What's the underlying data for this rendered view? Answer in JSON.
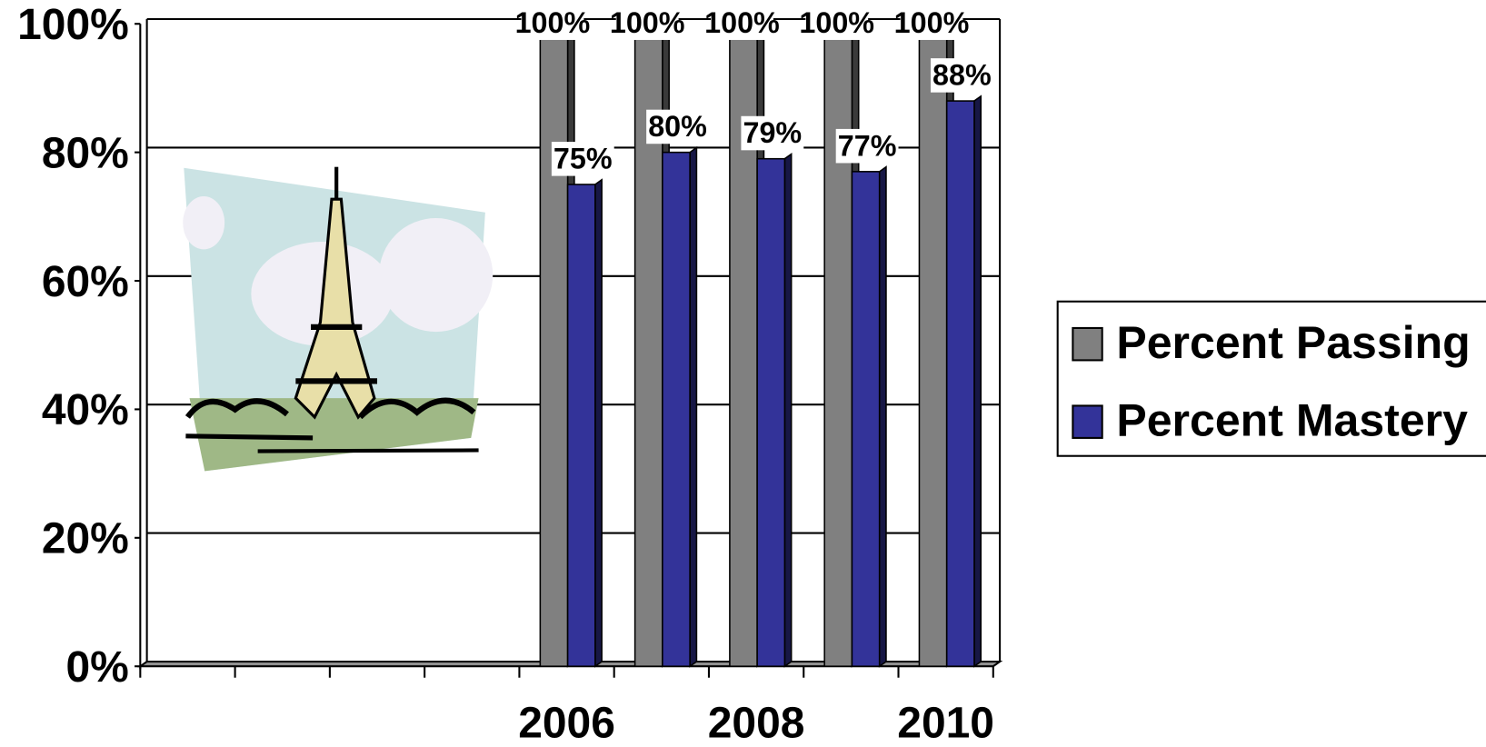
{
  "chart_data": {
    "type": "bar",
    "categories": [
      null,
      null,
      null,
      null,
      "2006",
      null,
      "2008",
      null,
      "2010"
    ],
    "series": [
      {
        "name": "Percent Passing",
        "color": "#808080",
        "values": [
          null,
          null,
          null,
          null,
          100,
          100,
          100,
          100,
          100
        ],
        "value_labels": [
          null,
          null,
          null,
          null,
          "100%",
          "100%",
          "100%",
          "100%",
          "100%"
        ]
      },
      {
        "name": "Percent Mastery",
        "color": "#333399",
        "values": [
          null,
          null,
          null,
          null,
          75,
          80,
          79,
          77,
          88
        ],
        "value_labels": [
          null,
          null,
          null,
          null,
          "75%",
          "80%",
          "79%",
          "77%",
          "88%"
        ]
      }
    ],
    "ylim": [
      0,
      100
    ],
    "yticks": [
      {
        "value": 0,
        "label": "0%"
      },
      {
        "value": 20,
        "label": "20%"
      },
      {
        "value": 40,
        "label": "40%"
      },
      {
        "value": 60,
        "label": "60%"
      },
      {
        "value": 80,
        "label": "80%"
      },
      {
        "value": 100,
        "label": "100%"
      }
    ],
    "grid": true,
    "legend": "right"
  }
}
